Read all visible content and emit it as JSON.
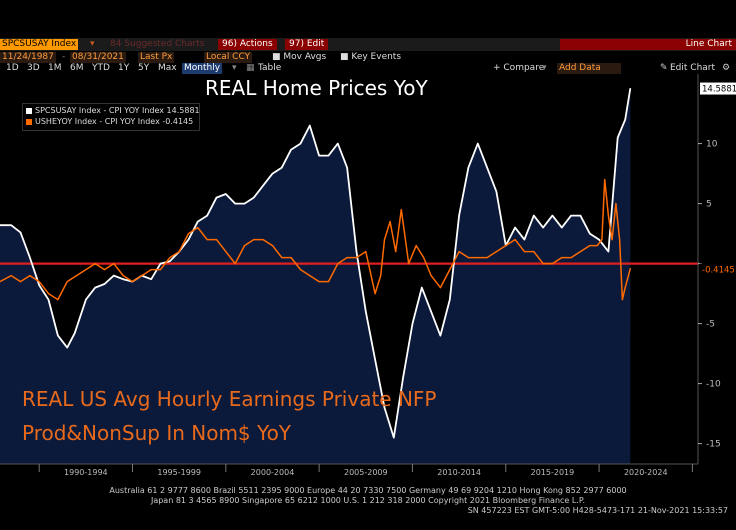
{
  "toolbar": {
    "ticker": "SPCSUSAY Index",
    "tab_suggested": "84 Suggested Charts",
    "actions": "96) Actions",
    "edit": "97) Edit",
    "chart_type": "Line Chart"
  },
  "range_bar": {
    "start_date": "11/24/1987",
    "end_date": "08/31/2021",
    "price_field": "Last Px",
    "currency": "Local CCY",
    "mov_avgs": "Mov Avgs",
    "key_events": "Key Events"
  },
  "period_bar": {
    "periods": [
      "1D",
      "3D",
      "1M",
      "6M",
      "YTD",
      "1Y",
      "5Y",
      "Max"
    ],
    "frequency": "Monthly",
    "table": "Table",
    "compare": "+ Compare",
    "add_data": "Add Data",
    "edit_chart": "Edit Chart"
  },
  "chart_data": {
    "type": "area",
    "title": "REAL Home Prices YoY",
    "x_range": [
      1987.9,
      2025.3
    ],
    "ylim": [
      -16.7,
      15.8
    ],
    "y_ticks": [
      10,
      5,
      0,
      -5,
      -10,
      -15
    ],
    "y_tick_labels": [
      "10",
      "5",
      "",
      "-5",
      "-10",
      "-15"
    ],
    "x_period_labels": [
      "1990-1994",
      "1995-1999",
      "2000-2004",
      "2005-2009",
      "2010-2014",
      "2015-2019",
      "2020-2024"
    ],
    "x_period_bounds": [
      1990,
      1995,
      2000,
      2005,
      2010,
      2015,
      2020,
      2025
    ],
    "series": [
      {
        "name": "SPCSUSAY Index - CPI YOY Index",
        "last_value": "14.5881",
        "last": 14.5881,
        "color": "#ffffff",
        "fill": "#0b1a3a",
        "x": [
          1987.9,
          1988.5,
          1989.0,
          1989.5,
          1990.0,
          1990.5,
          1991.0,
          1991.5,
          1991.9,
          1992.5,
          1993.0,
          1993.5,
          1994.0,
          1994.5,
          1995.0,
          1995.5,
          1996.0,
          1996.5,
          1997.0,
          1997.5,
          1998.0,
          1998.5,
          1999.0,
          1999.5,
          2000.0,
          2000.5,
          2001.0,
          2001.5,
          2002.0,
          2002.5,
          2003.0,
          2003.5,
          2004.0,
          2004.5,
          2005.0,
          2005.5,
          2006.0,
          2006.5,
          2007.0,
          2007.5,
          2008.0,
          2008.5,
          2009.0,
          2009.5,
          2010.0,
          2010.5,
          2011.0,
          2011.5,
          2012.0,
          2012.5,
          2013.0,
          2013.5,
          2014.0,
          2014.5,
          2015.0,
          2015.5,
          2016.0,
          2016.5,
          2017.0,
          2017.5,
          2018.0,
          2018.5,
          2019.0,
          2019.5,
          2020.0,
          2020.5,
          2021.0,
          2021.4,
          2021.67
        ],
        "values": [
          3.2,
          3.2,
          2.6,
          0.5,
          -1.8,
          -3.0,
          -6.0,
          -7.0,
          -5.8,
          -3.0,
          -2.0,
          -1.7,
          -1.0,
          -1.3,
          -1.5,
          -1.0,
          -1.3,
          0.0,
          0.2,
          1.0,
          2.0,
          3.5,
          4.0,
          5.5,
          5.8,
          5.0,
          5.0,
          5.5,
          6.5,
          7.5,
          8.0,
          9.5,
          10.0,
          11.5,
          9.0,
          9.0,
          10.0,
          8.0,
          1.0,
          -4.0,
          -8.0,
          -12.0,
          -14.5,
          -9.5,
          -5.0,
          -2.0,
          -4.0,
          -6.0,
          -3.0,
          4.0,
          8.0,
          10.0,
          8.0,
          6.0,
          1.5,
          3.0,
          2.0,
          4.0,
          3.0,
          4.0,
          3.0,
          4.0,
          4.0,
          2.5,
          2.0,
          1.0,
          10.5,
          12.0,
          14.5881
        ]
      },
      {
        "name": "USHEYOY Index - CPI YOY Index",
        "last_value": "-0.4145",
        "last": -0.4145,
        "color": "#ff6a00",
        "x": [
          1987.9,
          1988.5,
          1989.0,
          1989.5,
          1990.0,
          1990.5,
          1991.0,
          1991.5,
          1992.0,
          1992.5,
          1993.0,
          1993.5,
          1994.0,
          1994.5,
          1995.0,
          1995.5,
          1996.0,
          1996.5,
          1997.0,
          1997.5,
          1998.0,
          1998.5,
          1999.0,
          1999.5,
          2000.0,
          2000.5,
          2001.0,
          2001.5,
          2002.0,
          2002.5,
          2003.0,
          2003.5,
          2004.0,
          2004.5,
          2005.0,
          2005.5,
          2006.0,
          2006.5,
          2007.0,
          2007.5,
          2008.0,
          2008.3,
          2008.5,
          2008.8,
          2009.1,
          2009.4,
          2009.8,
          2010.2,
          2010.6,
          2011.0,
          2011.5,
          2012.0,
          2012.5,
          2013.0,
          2013.5,
          2014.0,
          2014.5,
          2015.0,
          2015.5,
          2016.0,
          2016.5,
          2017.0,
          2017.5,
          2018.0,
          2018.5,
          2019.0,
          2019.5,
          2019.9,
          2020.15,
          2020.3,
          2020.5,
          2020.7,
          2020.9,
          2021.1,
          2021.25,
          2021.4,
          2021.67
        ],
        "values": [
          -1.5,
          -1.0,
          -1.5,
          -1.0,
          -1.5,
          -2.5,
          -3.0,
          -1.5,
          -1.0,
          -0.5,
          0.0,
          -0.5,
          0.0,
          -1.0,
          -1.5,
          -1.0,
          -0.5,
          -0.5,
          0.5,
          1.0,
          2.5,
          3.0,
          2.0,
          2.0,
          1.0,
          0.0,
          1.5,
          2.0,
          2.0,
          1.5,
          0.5,
          0.5,
          -0.5,
          -1.0,
          -1.5,
          -1.5,
          0.0,
          0.5,
          0.5,
          1.0,
          -2.5,
          -1.0,
          2.0,
          3.5,
          1.0,
          4.5,
          0.0,
          1.5,
          0.5,
          -1.0,
          -2.0,
          -0.5,
          1.0,
          0.5,
          0.5,
          0.5,
          1.0,
          1.5,
          2.0,
          1.0,
          1.0,
          0.0,
          0.0,
          0.5,
          0.5,
          1.0,
          1.5,
          1.5,
          2.0,
          7.0,
          4.0,
          2.0,
          5.0,
          2.0,
          -3.0,
          -2.0,
          -0.4145
        ]
      }
    ],
    "reference_line": {
      "value": 0,
      "color": "#e02020"
    }
  },
  "annotation": {
    "line1": "REAL US Avg Hourly Earnings Private NFP",
    "line2": "Prod&NonSup In Nom$ YoY"
  },
  "footer": {
    "line1": "Australia 61 2 9777 8600 Brazil 5511 2395 9000 Europe 44 20 7330 7500 Germany 49 69 9204 1210 Hong Kong 852 2977 6000",
    "line2": "Japan 81 3 4565 8900        Singapore 65 6212 1000        U.S. 1 212 318 2000             Copyright 2021 Bloomberg Finance L.P.",
    "line3": "SN 457223 EST  GMT-5:00 H428-5473-171 21-Nov-2021 15:33:57"
  }
}
